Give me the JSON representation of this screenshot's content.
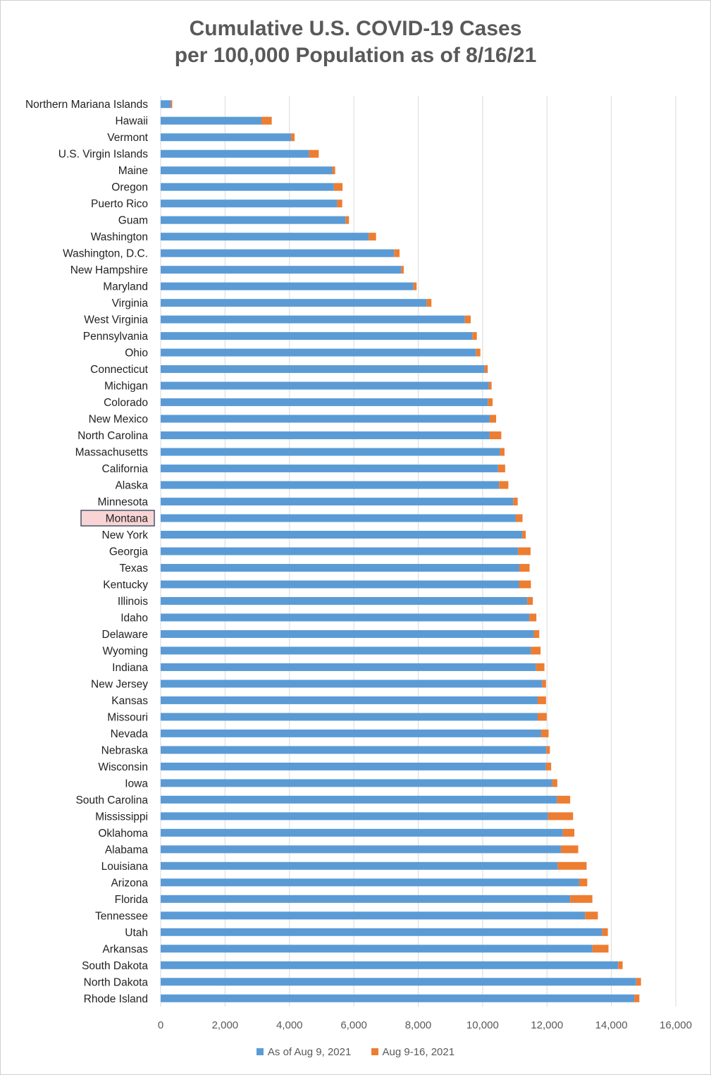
{
  "colors": {
    "base": "#5b9bd5",
    "increase": "#ed7d31",
    "grid": "#d9d9d9",
    "highlight_fill": "#f9d4d4",
    "highlight_border": "#44546a"
  },
  "chart_data": {
    "type": "bar",
    "orientation": "horizontal",
    "stacked": true,
    "title_line1": "Cumulative U.S. COVID-19 Cases",
    "title_line2": "per 100,000 Population as of 8/16/21",
    "xlim": [
      0,
      16000
    ],
    "xticks": [
      0,
      2000,
      4000,
      6000,
      8000,
      10000,
      12000,
      14000,
      16000
    ],
    "xtick_labels": [
      "0",
      "2,000",
      "4,000",
      "6,000",
      "8,000",
      "10,000",
      "12,000",
      "14,000",
      "16,000"
    ],
    "grid": "vertical",
    "legend_position": "bottom",
    "highlighted_category": "Montana",
    "categories": [
      "Northern Mariana Islands",
      "Hawaii",
      "Vermont",
      "U.S. Virgin Islands",
      "Maine",
      "Oregon",
      "Puerto Rico",
      "Guam",
      "Washington",
      "Washington, D.C.",
      "New Hampshire",
      "Maryland",
      "Virginia",
      "West Virginia",
      "Pennsylvania",
      "Ohio",
      "Connecticut",
      "Michigan",
      "Colorado",
      "New Mexico",
      "North Carolina",
      "Massachusetts",
      "California",
      "Alaska",
      "Minnesota",
      "Montana",
      "New York",
      "Georgia",
      "Texas",
      "Kentucky",
      "Illinois",
      "Idaho",
      "Delaware",
      "Wyoming",
      "Indiana",
      "New Jersey",
      "Kansas",
      "Missouri",
      "Nevada",
      "Nebraska",
      "Wisconsin",
      "Iowa",
      "South Carolina",
      "Mississippi",
      "Oklahoma",
      "Alabama",
      "Louisiana",
      "Arizona",
      "Florida",
      "Tennessee",
      "Utah",
      "Arkansas",
      "South Dakota",
      "North Dakota",
      "Rhode Island"
    ],
    "series": [
      {
        "name": "As of Aug 9, 2021",
        "values": [
          320,
          3130,
          4050,
          4610,
          5330,
          5380,
          5480,
          5740,
          6460,
          7250,
          7470,
          7850,
          8260,
          9450,
          9680,
          9790,
          10060,
          10190,
          10160,
          10220,
          10220,
          10540,
          10480,
          10510,
          10950,
          11030,
          11230,
          11100,
          11140,
          11130,
          11390,
          11450,
          11590,
          11500,
          11660,
          11850,
          11710,
          11710,
          11820,
          11980,
          11970,
          12160,
          12310,
          12030,
          12490,
          12430,
          12330,
          13000,
          12720,
          13180,
          13710,
          13410,
          14210,
          14770,
          14710
        ]
      },
      {
        "name": "Aug 9-16, 2021",
        "values": [
          40,
          320,
          110,
          300,
          90,
          270,
          160,
          110,
          230,
          170,
          80,
          100,
          150,
          180,
          140,
          140,
          100,
          90,
          150,
          200,
          360,
          140,
          220,
          290,
          140,
          210,
          110,
          390,
          320,
          370,
          170,
          220,
          170,
          300,
          260,
          120,
          260,
          280,
          230,
          110,
          160,
          160,
          410,
          780,
          360,
          540,
          900,
          250,
          690,
          400,
          180,
          500,
          140,
          150,
          160
        ]
      }
    ]
  }
}
